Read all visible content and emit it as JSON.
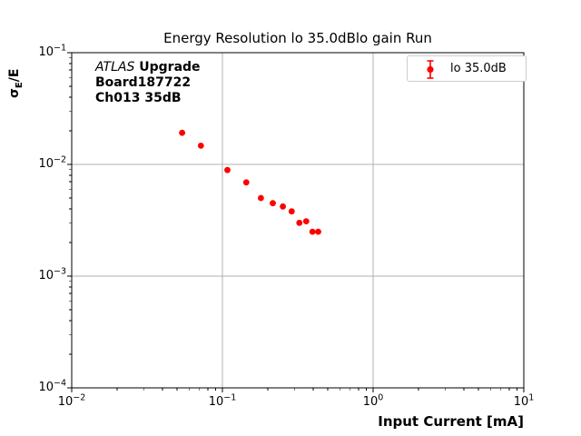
{
  "title": "Energy Resolution lo 35.0dBlo gain Run",
  "annotation": {
    "line1_italic": "ATLAS",
    "line1_bold": " Upgrade",
    "line2": "Board187722",
    "line3": "Ch013 35dB"
  },
  "chart_data": {
    "type": "scatter",
    "title": "Energy Resolution lo 35.0dBlo gain Run",
    "xlabel": "Input Current [mA]",
    "ylabel": "σ_E/E",
    "ylabel_parts": {
      "sigma": "σ",
      "sub": "E",
      "rest": "/E"
    },
    "x_scale": "log",
    "y_scale": "log",
    "xlim": [
      0.01,
      10
    ],
    "ylim": [
      0.0001,
      0.1
    ],
    "grid": true,
    "grid_color": "#b0b0b0",
    "legend_position": "upper-right",
    "x_ticks": [
      {
        "base": "10",
        "exp": "−2",
        "value": 0.01
      },
      {
        "base": "10",
        "exp": "−1",
        "value": 0.1
      },
      {
        "base": "10",
        "exp": "0",
        "value": 1
      },
      {
        "base": "10",
        "exp": "1",
        "value": 10
      }
    ],
    "y_ticks": [
      {
        "base": "10",
        "exp": "−1",
        "value": 0.1
      },
      {
        "base": "10",
        "exp": "−2",
        "value": 0.01
      },
      {
        "base": "10",
        "exp": "−3",
        "value": 0.001
      },
      {
        "base": "10",
        "exp": "−4",
        "value": 0.0001
      }
    ],
    "series": [
      {
        "name": "lo 35.0dB",
        "color": "#ff0000",
        "marker": "circle-with-errorbars",
        "x": [
          0.054,
          0.072,
          0.108,
          0.144,
          0.18,
          0.216,
          0.252,
          0.288,
          0.324,
          0.36,
          0.396,
          0.432
        ],
        "y": [
          0.0192,
          0.0147,
          0.0089,
          0.0069,
          0.005,
          0.0045,
          0.0042,
          0.0038,
          0.003,
          0.0031,
          0.0025,
          0.0025
        ]
      }
    ]
  }
}
